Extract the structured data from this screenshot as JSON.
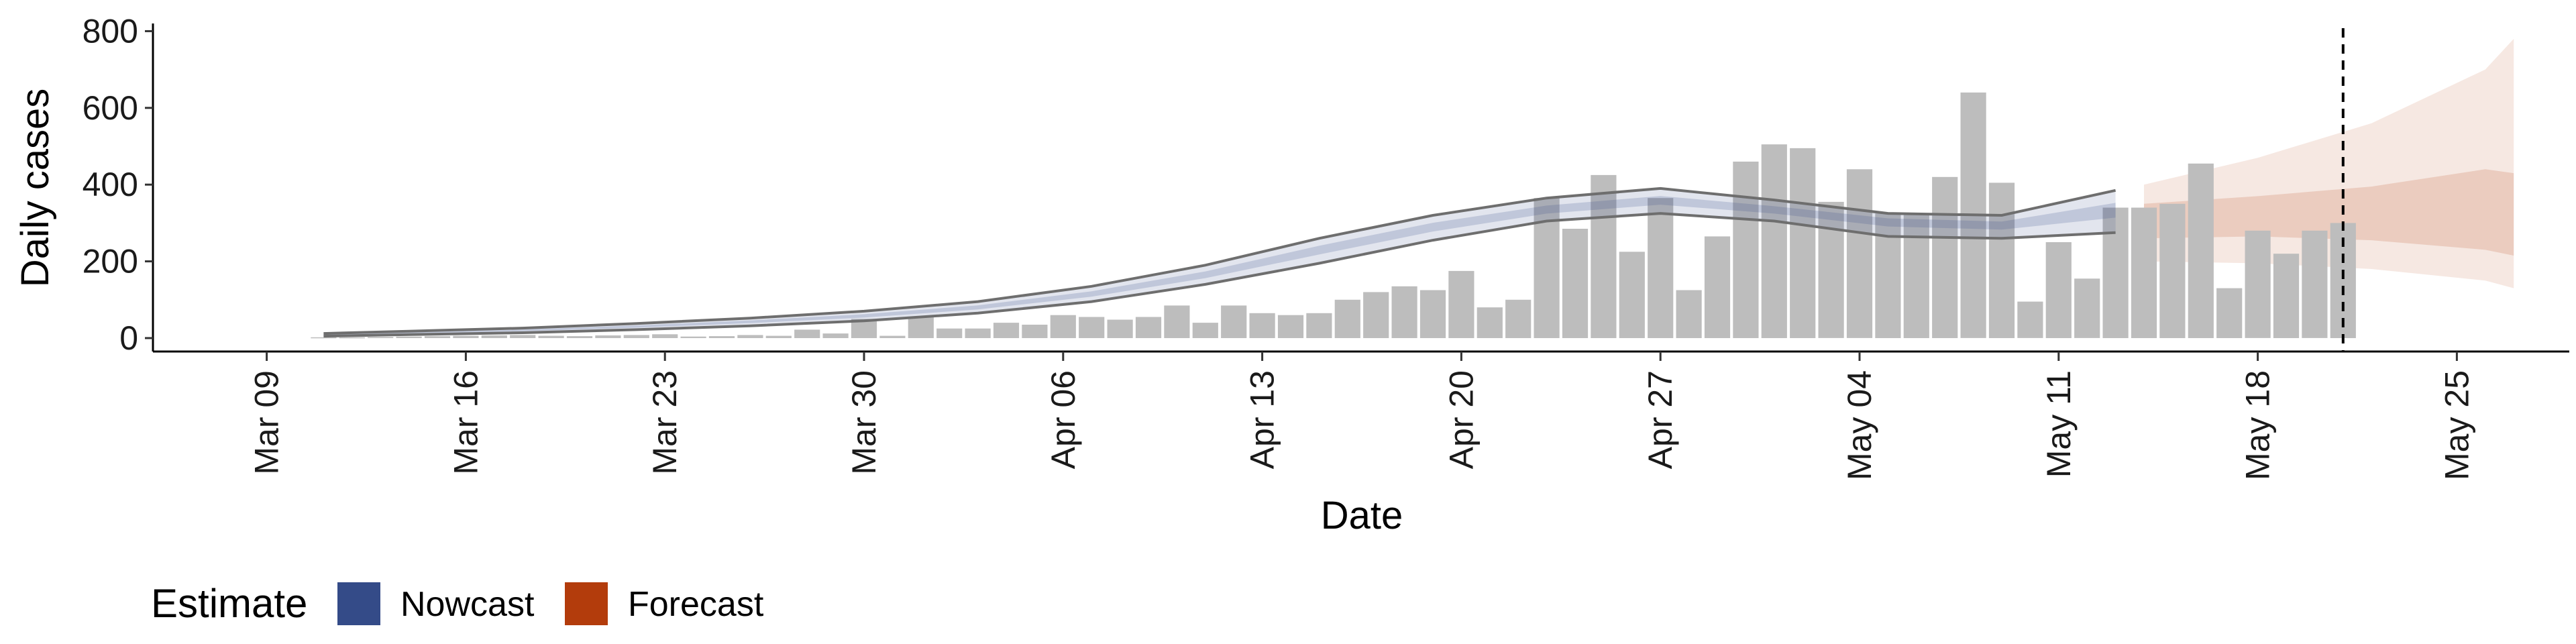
{
  "chart_data": {
    "type": "bar",
    "xlabel": "Date",
    "ylabel": "Daily cases",
    "x_range": [
      "2020-03-05",
      "2020-05-31"
    ],
    "ylim": [
      -35,
      820
    ],
    "y_ticks": [
      0,
      200,
      400,
      600,
      800
    ],
    "x_ticks": [
      {
        "date": "2020-03-09",
        "label": "Mar 09"
      },
      {
        "date": "2020-03-16",
        "label": "Mar 16"
      },
      {
        "date": "2020-03-23",
        "label": "Mar 23"
      },
      {
        "date": "2020-03-30",
        "label": "Mar 30"
      },
      {
        "date": "2020-04-06",
        "label": "Apr 06"
      },
      {
        "date": "2020-04-13",
        "label": "Apr 13"
      },
      {
        "date": "2020-04-20",
        "label": "Apr 20"
      },
      {
        "date": "2020-04-27",
        "label": "Apr 27"
      },
      {
        "date": "2020-05-04",
        "label": "May 04"
      },
      {
        "date": "2020-05-11",
        "label": "May 11"
      },
      {
        "date": "2020-05-18",
        "label": "May 18"
      },
      {
        "date": "2020-05-25",
        "label": "May 25"
      }
    ],
    "bars": {
      "dates": [
        "2020-03-11",
        "2020-03-12",
        "2020-03-13",
        "2020-03-14",
        "2020-03-15",
        "2020-03-16",
        "2020-03-17",
        "2020-03-18",
        "2020-03-19",
        "2020-03-20",
        "2020-03-21",
        "2020-03-22",
        "2020-03-23",
        "2020-03-24",
        "2020-03-25",
        "2020-03-26",
        "2020-03-27",
        "2020-03-28",
        "2020-03-29",
        "2020-03-30",
        "2020-03-31",
        "2020-04-01",
        "2020-04-02",
        "2020-04-03",
        "2020-04-04",
        "2020-04-05",
        "2020-04-06",
        "2020-04-07",
        "2020-04-08",
        "2020-04-09",
        "2020-04-10",
        "2020-04-11",
        "2020-04-12",
        "2020-04-13",
        "2020-04-14",
        "2020-04-15",
        "2020-04-16",
        "2020-04-17",
        "2020-04-18",
        "2020-04-19",
        "2020-04-20",
        "2020-04-21",
        "2020-04-22",
        "2020-04-23",
        "2020-04-24",
        "2020-04-25",
        "2020-04-26",
        "2020-04-27",
        "2020-04-28",
        "2020-04-29",
        "2020-04-30",
        "2020-05-01",
        "2020-05-02",
        "2020-05-03",
        "2020-05-04",
        "2020-05-05",
        "2020-05-06",
        "2020-05-07",
        "2020-05-08",
        "2020-05-09",
        "2020-05-10",
        "2020-05-11",
        "2020-05-12",
        "2020-05-13",
        "2020-05-14",
        "2020-05-15",
        "2020-05-16",
        "2020-05-17",
        "2020-05-18",
        "2020-05-19",
        "2020-05-20",
        "2020-05-21"
      ],
      "values": [
        2,
        2,
        3,
        4,
        5,
        6,
        7,
        8,
        6,
        5,
        7,
        8,
        10,
        4,
        5,
        8,
        6,
        22,
        12,
        50,
        6,
        55,
        25,
        25,
        40,
        35,
        60,
        55,
        48,
        55,
        85,
        40,
        85,
        65,
        60,
        65,
        100,
        120,
        135,
        125,
        175,
        80,
        100,
        365,
        285,
        425,
        225,
        365,
        125,
        265,
        460,
        505,
        495,
        355,
        440,
        325,
        325,
        420,
        640,
        405,
        95,
        250,
        155,
        340,
        340,
        350,
        455,
        130,
        280,
        220,
        280,
        300
      ]
    },
    "nowcast": {
      "dates": [
        "2020-03-11",
        "2020-03-14",
        "2020-03-18",
        "2020-03-22",
        "2020-03-26",
        "2020-03-30",
        "2020-04-03",
        "2020-04-07",
        "2020-04-11",
        "2020-04-15",
        "2020-04-19",
        "2020-04-23",
        "2020-04-27",
        "2020-05-01",
        "2020-05-05",
        "2020-05-09",
        "2020-05-13"
      ],
      "upper": [
        12,
        18,
        26,
        38,
        52,
        70,
        95,
        135,
        190,
        260,
        320,
        365,
        390,
        360,
        325,
        320,
        385
      ],
      "mid": [
        8,
        13,
        20,
        30,
        43,
        58,
        80,
        115,
        165,
        230,
        290,
        335,
        360,
        335,
        305,
        295,
        335
      ],
      "lower": [
        5,
        9,
        14,
        22,
        32,
        45,
        65,
        95,
        140,
        195,
        255,
        305,
        325,
        305,
        265,
        260,
        275
      ]
    },
    "forecast": {
      "dates": [
        "2020-05-14",
        "2020-05-18",
        "2020-05-22",
        "2020-05-26",
        "2020-05-27"
      ],
      "upper": [
        400,
        470,
        560,
        700,
        780
      ],
      "upper50": [
        350,
        370,
        395,
        440,
        430
      ],
      "lower50": [
        260,
        265,
        255,
        230,
        215
      ],
      "lower": [
        200,
        195,
        180,
        150,
        130
      ]
    },
    "vline_date": "2020-05-21",
    "colors": {
      "bars": "#bdbdbd",
      "nowcast": "#3c4f8c",
      "forecast": "#b5400f",
      "interval_line": "#6e6e6e"
    },
    "legend": {
      "title": "Estimate",
      "items": [
        {
          "label": "Nowcast",
          "color": "#344b88"
        },
        {
          "label": "Forecast",
          "color": "#b33c0c"
        }
      ]
    }
  }
}
